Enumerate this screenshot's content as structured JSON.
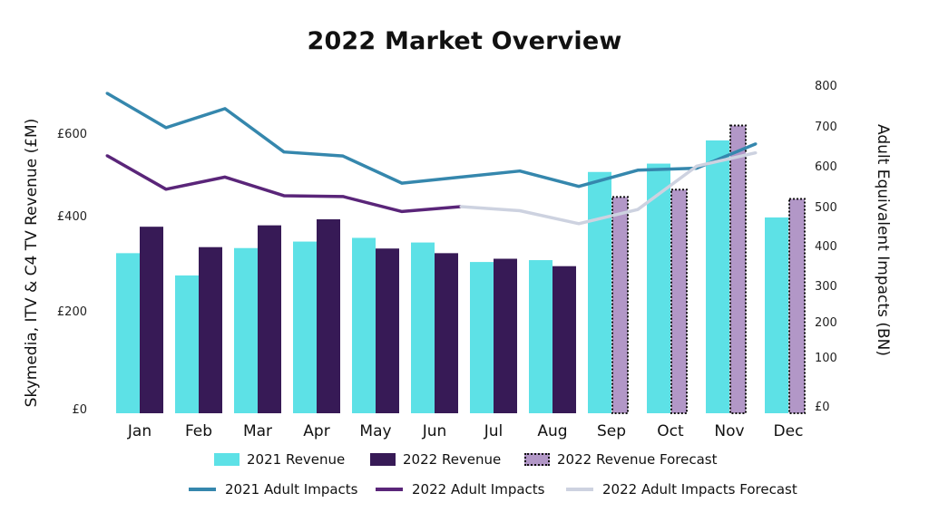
{
  "colors": {
    "revenue_2021": "#5de1e6",
    "revenue_2022": "#371a56",
    "revenue_2022_forecast": "#b297c7",
    "impacts_2021": "#3587ad",
    "impacts_2022": "#5a2579",
    "impacts_2022_forecast": "#cdd2e0"
  },
  "chart_data": {
    "type": "bar",
    "title": "2022 Market Overview",
    "ylabel": "Skymedia, ITV & C4 TV Revenue (£M)",
    "y2label": "Adult Equivalent Impacts (BN)",
    "categories": [
      "Jan",
      "Feb",
      "Mar",
      "Apr",
      "May",
      "Jun",
      "Jul",
      "Aug",
      "Sep",
      "Oct",
      "Nov",
      "Dec"
    ],
    "left_ticks": [
      {
        "label": "£0",
        "value": 0
      },
      {
        "label": "£200",
        "value": 200
      },
      {
        "label": "£400",
        "value": 400
      },
      {
        "label": "£600",
        "value": 600
      }
    ],
    "right_ticks": [
      {
        "label": "£0",
        "value": 0
      },
      {
        "label": "100",
        "value": 100
      },
      {
        "label": "200",
        "value": 200
      },
      {
        "label": "300",
        "value": 300
      },
      {
        "label": "400",
        "value": 400
      },
      {
        "label": "500",
        "value": 500
      },
      {
        "label": "600",
        "value": 600
      },
      {
        "label": "700",
        "value": 700
      },
      {
        "label": "800",
        "value": 800
      }
    ],
    "series": [
      {
        "name": "2021 Revenue",
        "kind": "bar",
        "values": [
          345,
          297,
          356,
          370,
          378,
          368,
          326,
          330,
          520,
          538,
          588,
          422
        ]
      },
      {
        "name": "2022 Revenue",
        "kind": "bar",
        "values": [
          402,
          358,
          405,
          418,
          355,
          345,
          333,
          317,
          null,
          null,
          null,
          null
        ]
      },
      {
        "name": "2022 Revenue Forecast",
        "kind": "bar",
        "values": [
          null,
          null,
          null,
          null,
          null,
          null,
          null,
          null,
          466,
          482,
          620,
          462
        ]
      },
      {
        "name": "2021 Adult Impacts",
        "kind": "line",
        "values": [
          790,
          705,
          752,
          645,
          635,
          568,
          583,
          598,
          560,
          600,
          605,
          665
        ]
      },
      {
        "name": "2022 Adult Impacts",
        "kind": "line",
        "values": [
          636,
          553,
          583,
          537,
          535,
          498,
          510,
          null,
          null,
          null,
          null,
          null
        ]
      },
      {
        "name": "2022 Adult Impacts Forecast",
        "kind": "line",
        "values": [
          null,
          null,
          null,
          null,
          null,
          null,
          510,
          500,
          468,
          503,
          610,
          643
        ]
      }
    ]
  },
  "legend": {
    "row1": [
      "2021 Revenue",
      "2022 Revenue",
      "2022 Revenue Forecast"
    ],
    "row2": [
      "2021 Adult Impacts",
      "2022 Adult Impacts",
      "2022 Adult Impacts Forecast"
    ]
  }
}
